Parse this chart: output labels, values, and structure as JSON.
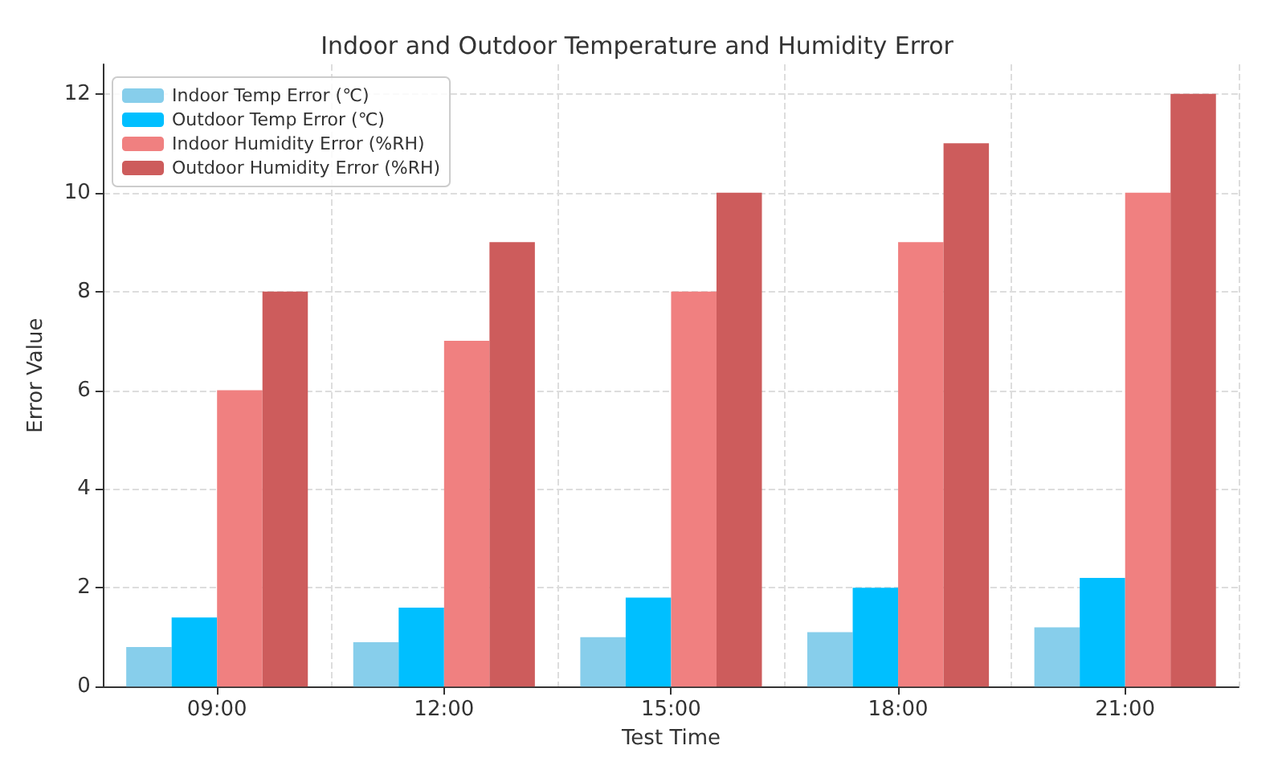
{
  "chart_data": {
    "type": "bar",
    "title": "Indoor and Outdoor Temperature and Humidity Error",
    "xlabel": "Test Time",
    "ylabel": "Error Value",
    "categories": [
      "09:00",
      "12:00",
      "15:00",
      "18:00",
      "21:00"
    ],
    "series": [
      {
        "name": "Indoor Temp Error (℃)",
        "color": "#87ceeb",
        "values": [
          0.8,
          0.9,
          1.0,
          1.1,
          1.2
        ]
      },
      {
        "name": "Outdoor Temp Error (℃)",
        "color": "#00bfff",
        "values": [
          1.4,
          1.6,
          1.8,
          2.0,
          2.2
        ]
      },
      {
        "name": "Indoor Humidity Error (%RH)",
        "color": "#f08080",
        "values": [
          6,
          7,
          8,
          9,
          10
        ]
      },
      {
        "name": "Outdoor Humidity Error (%RH)",
        "color": "#cd5c5c",
        "values": [
          8,
          9,
          10,
          11,
          12
        ]
      }
    ],
    "ylim": [
      0,
      12.6
    ],
    "yticks": [
      0,
      2,
      4,
      6,
      8,
      10,
      12
    ],
    "grid": true,
    "legend": "top left"
  }
}
